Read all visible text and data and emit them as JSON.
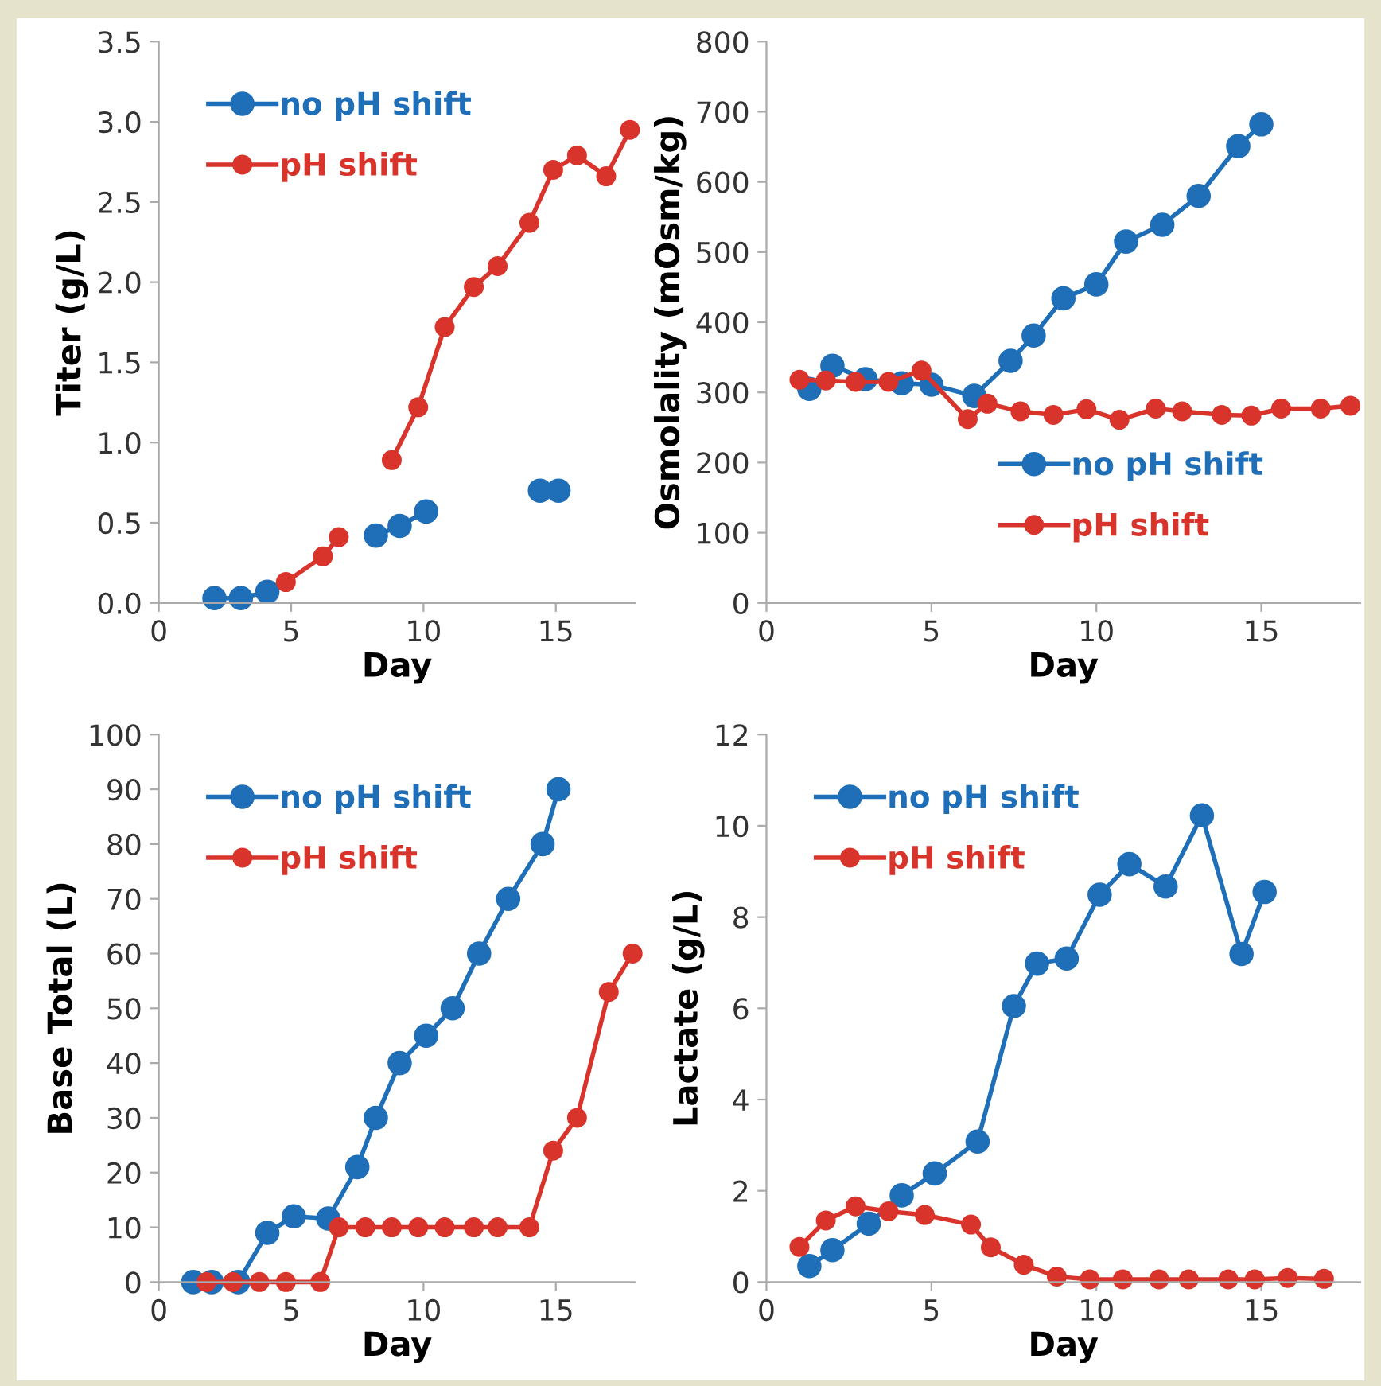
{
  "chart_data": [
    {
      "type": "line",
      "xlabel": "Day",
      "ylabel": "Titer (g/L)",
      "xlim": [
        0,
        18
      ],
      "xticks": [
        0,
        5,
        10,
        15
      ],
      "ylim": [
        0,
        3.5
      ],
      "yticks": [
        {
          "value": 0,
          "label": "0.0"
        },
        {
          "value": 0.5,
          "label": "0.5"
        },
        {
          "value": 1,
          "label": "1.0"
        },
        {
          "value": 1.5,
          "label": "1.5"
        },
        {
          "value": 2,
          "label": "2.0"
        },
        {
          "value": 2.5,
          "label": "2.5"
        },
        {
          "value": 3,
          "label": "3.0"
        },
        {
          "value": 3.5,
          "label": "3.5"
        }
      ],
      "legend": "top left",
      "marker": "circle",
      "line_style": "solid",
      "series": [
        {
          "name": "no pH shift",
          "color": "#1f6fb8",
          "x": [
            2.1,
            3.1,
            4.1,
            6,
            8.2,
            9.1,
            10.1,
            12,
            14.4,
            15.1
          ],
          "values": [
            0.03,
            0.03,
            0.07,
            null,
            0.42,
            0.48,
            0.57,
            null,
            0.7,
            0.7
          ]
        },
        {
          "name": "pH shift",
          "color": "#d9342b",
          "x": [
            4.8,
            6.2,
            6.8,
            7.8,
            8.8,
            9.8,
            10.8,
            11.9,
            12.8,
            14.0,
            14.9,
            15.8,
            16.9,
            17.8
          ],
          "values": [
            0.13,
            0.29,
            0.41,
            null,
            0.89,
            1.22,
            1.72,
            1.97,
            2.1,
            2.37,
            2.7,
            2.79,
            2.66,
            2.95
          ]
        }
      ]
    },
    {
      "type": "line",
      "xlabel": "Day",
      "ylabel": "Osmolality (mOsm/kg)",
      "xlim": [
        0,
        18
      ],
      "xticks": [
        0,
        5,
        10,
        15
      ],
      "ylim": [
        0,
        800
      ],
      "yticks": [
        0,
        100,
        200,
        300,
        400,
        500,
        600,
        700,
        800
      ],
      "legend": "bottom right",
      "marker": "circle",
      "line_style": "solid",
      "series": [
        {
          "name": "no pH shift",
          "color": "#1f6fb8",
          "x": [
            1.3,
            2.0,
            3.0,
            4.1,
            5.0,
            6.3,
            7.4,
            8.1,
            9.0,
            10.0,
            10.9,
            12.0,
            13.1,
            14.3,
            15.0
          ],
          "values": [
            305,
            338,
            319,
            313,
            311,
            295,
            345,
            381,
            434,
            454,
            515,
            539,
            580,
            651,
            682
          ]
        },
        {
          "name": "pH shift",
          "color": "#d9342b",
          "x": [
            1.0,
            1.8,
            2.7,
            3.7,
            4.7,
            6.1,
            6.7,
            7.7,
            8.7,
            9.7,
            10.7,
            11.8,
            12.6,
            13.8,
            14.7,
            15.6,
            16.8,
            17.7
          ],
          "values": [
            318,
            317,
            315,
            315,
            331,
            262,
            284,
            273,
            268,
            276,
            261,
            277,
            273,
            268,
            267,
            277,
            277,
            281
          ]
        }
      ]
    },
    {
      "type": "line",
      "xlabel": "Day",
      "ylabel": "Base Total (L)",
      "xlim": [
        0,
        18
      ],
      "xticks": [
        0,
        5,
        10,
        15
      ],
      "ylim": [
        0,
        100
      ],
      "yticks": [
        0,
        10,
        20,
        30,
        40,
        50,
        60,
        70,
        80,
        90,
        100
      ],
      "legend": "top left",
      "marker": "circle",
      "line_style": "solid",
      "series": [
        {
          "name": "no pH shift",
          "color": "#1f6fb8",
          "x": [
            1.3,
            2.0,
            3.0,
            4.1,
            5.1,
            6.4,
            7.5,
            8.2,
            9.1,
            10.1,
            11.1,
            12.1,
            13.2,
            14.5,
            15.1
          ],
          "values": [
            0,
            0,
            0,
            9,
            12,
            11.6,
            21,
            30,
            40,
            45,
            50,
            60,
            70,
            80,
            90
          ]
        },
        {
          "name": "pH shift",
          "color": "#d9342b",
          "x": [
            1.8,
            2.8,
            3.8,
            4.8,
            6.1,
            6.8,
            7.8,
            8.8,
            9.8,
            10.8,
            11.9,
            12.8,
            14.0,
            14.9,
            15.8,
            17.0,
            17.9
          ],
          "values": [
            0,
            0,
            0,
            0,
            0,
            10,
            10,
            10,
            10,
            10,
            10,
            10,
            10,
            24,
            30,
            53,
            60
          ]
        }
      ]
    },
    {
      "type": "line",
      "xlabel": "Day",
      "ylabel": "Lactate (g/L)",
      "xlim": [
        0,
        18
      ],
      "xticks": [
        0,
        5,
        10,
        15
      ],
      "ylim": [
        0,
        12
      ],
      "yticks": [
        0,
        2,
        4,
        6,
        8,
        10,
        12
      ],
      "legend": "top left",
      "marker": "circle",
      "line_style": "solid",
      "series": [
        {
          "name": "no pH shift",
          "color": "#1f6fb8",
          "x": [
            1.3,
            2.0,
            3.1,
            4.1,
            5.1,
            6.4,
            7.5,
            8.2,
            9.1,
            10.1,
            11.0,
            12.1,
            13.2,
            14.4,
            15.1
          ],
          "values": [
            0.35,
            0.7,
            1.28,
            1.9,
            2.38,
            3.08,
            6.05,
            6.98,
            7.09,
            8.49,
            9.16,
            8.67,
            10.23,
            7.19,
            8.55
          ]
        },
        {
          "name": "pH shift",
          "color": "#d9342b",
          "x": [
            1.0,
            1.8,
            2.7,
            3.7,
            4.8,
            6.2,
            6.8,
            7.8,
            8.8,
            9.8,
            10.8,
            11.9,
            12.8,
            14.0,
            14.8,
            15.8,
            16.9
          ],
          "values": [
            0.77,
            1.35,
            1.66,
            1.55,
            1.47,
            1.26,
            0.76,
            0.38,
            0.12,
            0.06,
            0.06,
            0.06,
            0.06,
            0.06,
            0.06,
            0.09,
            0.07
          ]
        }
      ]
    }
  ]
}
